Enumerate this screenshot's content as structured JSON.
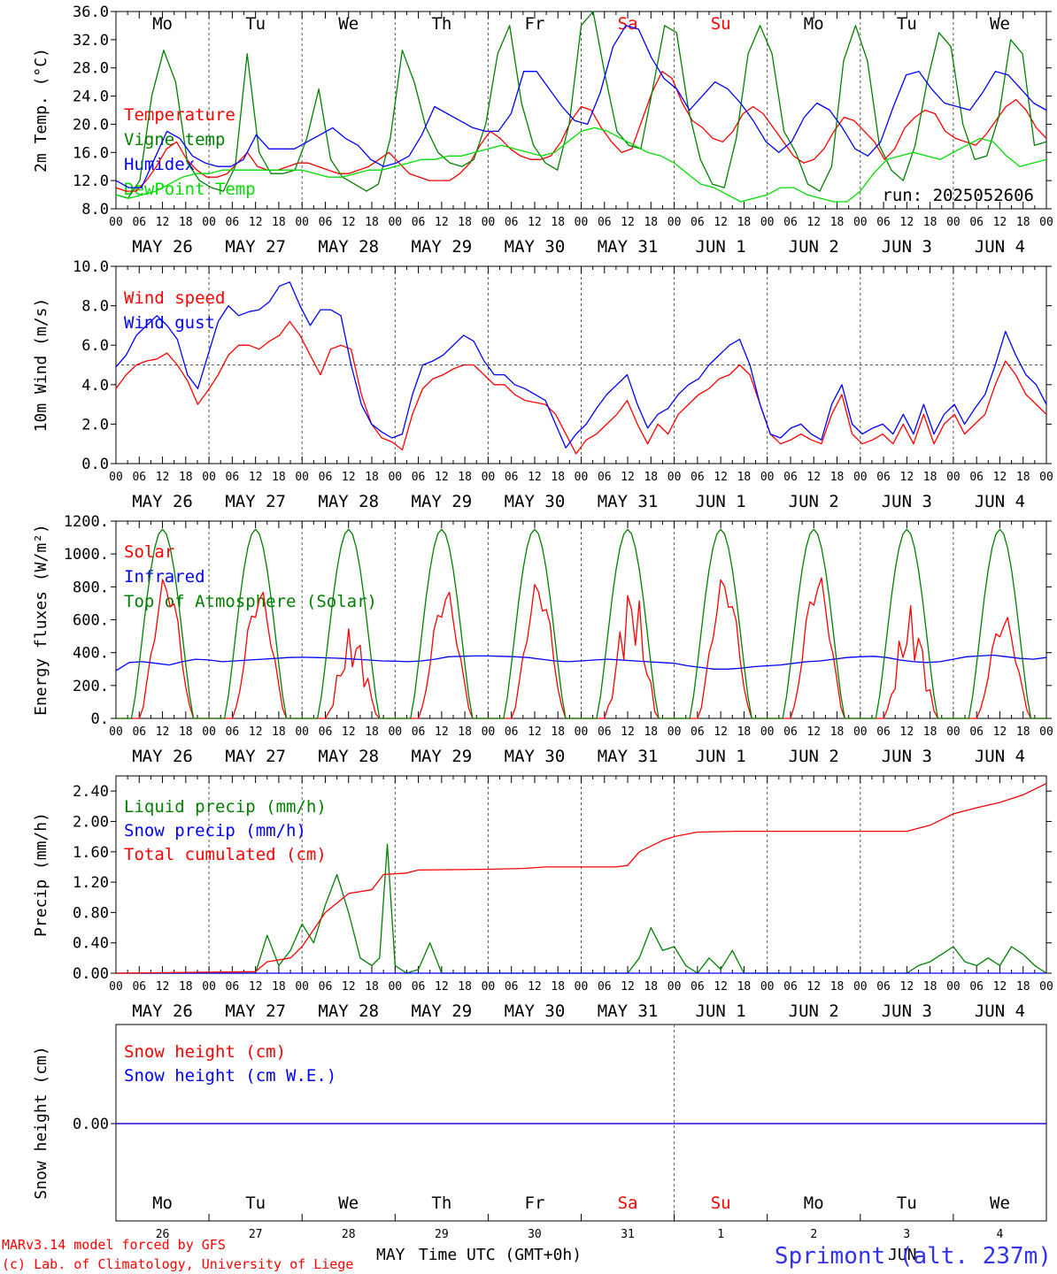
{
  "run_label": "run: 2025052606",
  "footer": {
    "model": "MARv3.14 model forced by GFS",
    "credit": "(c) Lab. of Climatology, University of Liege",
    "xlabel": "Time UTC (GMT+0h)",
    "month_may": "MAY",
    "month_jun": "JUN",
    "station": "Sprimont (alt. 237m)"
  },
  "days": [
    {
      "dow": "Mo",
      "date": "MAY 26",
      "num": "26",
      "weekend": false
    },
    {
      "dow": "Tu",
      "date": "MAY 27",
      "num": "27",
      "weekend": false
    },
    {
      "dow": "We",
      "date": "MAY 28",
      "num": "28",
      "weekend": false
    },
    {
      "dow": "Th",
      "date": "MAY 29",
      "num": "29",
      "weekend": false
    },
    {
      "dow": "Fr",
      "date": "MAY 30",
      "num": "30",
      "weekend": false
    },
    {
      "dow": "Sa",
      "date": "MAY 31",
      "num": "31",
      "weekend": true
    },
    {
      "dow": "Su",
      "date": "JUN  1",
      "num": "1",
      "weekend": true
    },
    {
      "dow": "Mo",
      "date": "JUN  2",
      "num": "2",
      "weekend": false
    },
    {
      "dow": "Tu",
      "date": "JUN  3",
      "num": "3",
      "weekend": false
    },
    {
      "dow": "We",
      "date": "JUN  4",
      "num": "4",
      "weekend": false
    }
  ],
  "hour_labels": [
    "00",
    "06",
    "12",
    "18"
  ],
  "last_hour_label": "00",
  "colors": {
    "red": "#ff0000",
    "green": "#008000",
    "blue": "#0000ff",
    "lightgreen": "#00dd00",
    "weekend": "#ff0000"
  },
  "chart_data": [
    {
      "type": "line",
      "ylabel": "2m Temp. (°C)",
      "ylim": [
        8,
        36
      ],
      "yticks": [
        "8.0",
        "12.0",
        "16.0",
        "20.0",
        "24.0",
        "28.0",
        "32.0",
        "36.0"
      ],
      "x_unit": "hours since MAY 26 00 UTC, 3-hourly, 0..240",
      "series": [
        {
          "name": "Temperature",
          "color": "red",
          "values": [
            11,
            10.5,
            10.5,
            12,
            14,
            16.5,
            17.5,
            15,
            13.5,
            12.5,
            12.5,
            13,
            14.5,
            16,
            14,
            13.5,
            13.5,
            14,
            14.5,
            14.5,
            14,
            13.5,
            13,
            13,
            13.5,
            14,
            15,
            16,
            14.5,
            13,
            12.5,
            12,
            12,
            12,
            13,
            14.5,
            17,
            19,
            18,
            16.5,
            15.5,
            15,
            15,
            15.5,
            17.5,
            20.5,
            22.5,
            22,
            19.5,
            17.5,
            16,
            16.5,
            20.5,
            24.5,
            27.5,
            26.5,
            23,
            20.5,
            19.5,
            18,
            17.5,
            19,
            21.5,
            22.5,
            21.5,
            19.5,
            17.5,
            15.5,
            14.5,
            15,
            16.5,
            19,
            21,
            20.5,
            19,
            17.5,
            15,
            16.5,
            19.5,
            21,
            22,
            21.5,
            19,
            18,
            17.5,
            17,
            18.5,
            20.5,
            22.5,
            23.5,
            22,
            19.5,
            18
          ]
        },
        {
          "name": "Vigne temp",
          "color": "green",
          "values": [
            10,
            9.5,
            12,
            24,
            30.5,
            26,
            14.5,
            12,
            11,
            10.5,
            14,
            30,
            16,
            13,
            13,
            13.5,
            18,
            25,
            15,
            12.5,
            11.5,
            10.5,
            11.5,
            18,
            30.5,
            26,
            19.5,
            16,
            14.5,
            14,
            15,
            20,
            30,
            34,
            23,
            17,
            14.5,
            13.5,
            20,
            34,
            36,
            27,
            19,
            17,
            16.5,
            25,
            34,
            33,
            22,
            15,
            11.5,
            11,
            18,
            30,
            34,
            30,
            19,
            16,
            11.5,
            10.5,
            14,
            29,
            34,
            29,
            17,
            13.5,
            12,
            17,
            26,
            33,
            31,
            20,
            15,
            15.5,
            21,
            32,
            30,
            17,
            17.5
          ]
        },
        {
          "name": "Humidex",
          "color": "blue",
          "values": [
            12,
            11,
            11,
            15,
            19,
            18,
            15.5,
            14.5,
            14,
            14,
            15,
            18.5,
            16.5,
            16.5,
            16.5,
            17.5,
            18.5,
            19.5,
            18,
            17,
            15,
            14,
            14.5,
            15.5,
            18.5,
            22.5,
            21.5,
            20.5,
            19.5,
            19,
            19,
            21.5,
            27.5,
            27.5,
            25,
            22.5,
            20.5,
            20,
            24.5,
            31,
            34,
            33.5,
            29.5,
            26.5,
            25,
            22,
            24,
            26,
            25,
            23,
            20.5,
            17.5,
            16,
            17.5,
            21,
            23,
            22,
            19.5,
            16.5,
            15.5,
            17.5,
            22.5,
            27,
            27.5,
            25,
            23,
            22.5,
            22,
            24.5,
            27.5,
            27,
            25,
            23,
            22
          ]
        },
        {
          "name": "DewPoint Temp",
          "color": "lightgreen",
          "values": [
            10,
            9.5,
            10,
            10.5,
            11.5,
            12.5,
            13,
            13,
            13.5,
            13.5,
            13.5,
            13.5,
            13.5,
            13.5,
            13.5,
            13,
            12.5,
            12.5,
            13,
            13.5,
            13.5,
            14,
            14.5,
            15,
            15,
            15.5,
            15.5,
            16,
            16.5,
            17,
            16.5,
            16,
            15.5,
            16,
            17.5,
            19,
            19.5,
            19,
            18,
            17,
            16,
            15.5,
            14.5,
            13,
            11.5,
            11,
            10,
            9,
            9.5,
            10,
            11,
            11,
            10,
            9.5,
            9,
            9,
            10.5,
            13,
            15,
            15.5,
            16,
            15.5,
            15,
            16,
            17,
            18,
            17.5,
            15.5,
            14,
            14.5,
            15
          ]
        }
      ]
    },
    {
      "type": "line",
      "ylabel": "10m Wind (m/s)",
      "ylim": [
        0,
        10
      ],
      "yticks": [
        "0.0",
        "2.0",
        "4.0",
        "6.0",
        "8.0",
        "10.0"
      ],
      "reference_line": 5,
      "series": [
        {
          "name": "Wind speed",
          "color": "red",
          "values": [
            3.8,
            4.5,
            5,
            5.2,
            5.3,
            5.6,
            5,
            4.2,
            3,
            3.7,
            4.5,
            5.5,
            6,
            6,
            5.8,
            6.2,
            6.5,
            7.2,
            6.5,
            5.5,
            4.5,
            5.8,
            6,
            5.8,
            3.5,
            2,
            1.3,
            1.1,
            0.7,
            2.5,
            3.8,
            4.3,
            4.5,
            4.8,
            5,
            5,
            4.5,
            4,
            4,
            3.5,
            3.2,
            3.1,
            3,
            2.5,
            1.5,
            0.5,
            1.2,
            1.5,
            2,
            2.5,
            3.2,
            2,
            1,
            2,
            1.5,
            2.5,
            3,
            3.5,
            3.8,
            4.3,
            4.5,
            5,
            4.5,
            3,
            1.5,
            1,
            1.2,
            1.5,
            1.2,
            1,
            2.5,
            3.5,
            1.5,
            1,
            1.2,
            1.5,
            1,
            2,
            1,
            2.5,
            1,
            2,
            2.5,
            1.5,
            2,
            2.5,
            4,
            5.2,
            4.5,
            3.5,
            3,
            2.5
          ]
        },
        {
          "name": "Wind gust",
          "color": "blue",
          "values": [
            4.9,
            5.5,
            6.5,
            7,
            7.5,
            7,
            6.3,
            4.5,
            3.8,
            5.5,
            7.2,
            8,
            7.5,
            7.7,
            7.8,
            8.2,
            9,
            9.2,
            8,
            7,
            7.8,
            7.8,
            7.5,
            5,
            3,
            2,
            1.6,
            1.3,
            1.5,
            3.5,
            5,
            5.2,
            5.5,
            6,
            6.5,
            6.2,
            5.2,
            4.5,
            4.5,
            4,
            3.8,
            3.5,
            3.2,
            2,
            0.8,
            1.5,
            2,
            2.8,
            3.5,
            4,
            4.5,
            3,
            1.8,
            2.5,
            2.8,
            3.5,
            4,
            4.3,
            5,
            5.5,
            6,
            6.3,
            5,
            3,
            1.5,
            1.3,
            1.8,
            2,
            1.5,
            1.2,
            3,
            4,
            2,
            1.5,
            1.8,
            2,
            1.5,
            2.5,
            1.5,
            3,
            1.5,
            2.5,
            3,
            2,
            2.8,
            3.5,
            5,
            6.7,
            5.5,
            4.5,
            4,
            3
          ]
        }
      ]
    },
    {
      "type": "line",
      "ylabel": "Energy fluxes (W/m²)",
      "ylim": [
        0,
        1200
      ],
      "yticks": [
        "0.",
        "200.",
        "400.",
        "600.",
        "800.",
        "1000.",
        "1200."
      ],
      "series": [
        {
          "name": "Solar",
          "color": "red",
          "peaks": [
            880,
            800,
            570,
            800,
            850,
            850,
            880,
            890,
            700,
            640
          ]
        },
        {
          "name": "Infrared",
          "color": "blue",
          "values": [
            290,
            340,
            345,
            335,
            325,
            345,
            360,
            355,
            345,
            350,
            355,
            360,
            365,
            370,
            372,
            370,
            368,
            365,
            360,
            355,
            350,
            348,
            345,
            350,
            360,
            375,
            378,
            380,
            380,
            378,
            375,
            370,
            360,
            350,
            345,
            350,
            355,
            360,
            355,
            350,
            345,
            340,
            335,
            320,
            310,
            300,
            300,
            305,
            315,
            320,
            325,
            335,
            345,
            350,
            360,
            370,
            375,
            378,
            370,
            355,
            345,
            340,
            345,
            360,
            375,
            380,
            385,
            375,
            365,
            360,
            370
          ]
        },
        {
          "name": "Top of Atmosphere (Solar)",
          "color": "green",
          "peak": 1150
        }
      ]
    },
    {
      "type": "line",
      "ylabel": "Precip (mm/h)",
      "ylim": [
        0,
        2.6
      ],
      "yticks": [
        "0.00",
        "0.40",
        "0.80",
        "1.20",
        "1.60",
        "2.00",
        "2.40"
      ],
      "series": [
        {
          "name": "Liquid precip (mm/h)",
          "color": "green",
          "points": [
            [
              0,
              0
            ],
            [
              36,
              0
            ],
            [
              39,
              0.5
            ],
            [
              42,
              0.1
            ],
            [
              45,
              0.3
            ],
            [
              48,
              0.65
            ],
            [
              51,
              0.4
            ],
            [
              54,
              0.9
            ],
            [
              57,
              1.3
            ],
            [
              60,
              0.8
            ],
            [
              63,
              0.2
            ],
            [
              66,
              0.1
            ],
            [
              68,
              0.2
            ],
            [
              70,
              1.7
            ],
            [
              72,
              0.1
            ],
            [
              75,
              0
            ],
            [
              78,
              0.05
            ],
            [
              81,
              0.4
            ],
            [
              84,
              0
            ],
            [
              132,
              0
            ],
            [
              135,
              0.2
            ],
            [
              138,
              0.6
            ],
            [
              141,
              0.3
            ],
            [
              144,
              0.35
            ],
            [
              147,
              0.1
            ],
            [
              150,
              0
            ],
            [
              153,
              0.2
            ],
            [
              156,
              0.05
            ],
            [
              159,
              0.3
            ],
            [
              162,
              0
            ],
            [
              204,
              0
            ],
            [
              207,
              0.1
            ],
            [
              210,
              0.15
            ],
            [
              213,
              0.25
            ],
            [
              216,
              0.35
            ],
            [
              219,
              0.15
            ],
            [
              222,
              0.1
            ],
            [
              225,
              0.2
            ],
            [
              228,
              0.1
            ],
            [
              231,
              0.35
            ],
            [
              234,
              0.25
            ],
            [
              237,
              0.1
            ],
            [
              240,
              0
            ]
          ]
        },
        {
          "name": "Snow precip (mm/h)",
          "color": "blue",
          "points": [
            [
              0,
              0
            ],
            [
              240,
              0
            ]
          ]
        },
        {
          "name": "Total cumulated (cm)",
          "color": "red",
          "points": [
            [
              0,
              0
            ],
            [
              36,
              0.02
            ],
            [
              39,
              0.15
            ],
            [
              45,
              0.2
            ],
            [
              48,
              0.35
            ],
            [
              54,
              0.8
            ],
            [
              60,
              1.05
            ],
            [
              66,
              1.1
            ],
            [
              69,
              1.3
            ],
            [
              75,
              1.32
            ],
            [
              78,
              1.36
            ],
            [
              96,
              1.37
            ],
            [
              105,
              1.38
            ],
            [
              111,
              1.4
            ],
            [
              129,
              1.4
            ],
            [
              132,
              1.42
            ],
            [
              135,
              1.6
            ],
            [
              141,
              1.75
            ],
            [
              144,
              1.8
            ],
            [
              150,
              1.86
            ],
            [
              160,
              1.87
            ],
            [
              204,
              1.87
            ],
            [
              210,
              1.95
            ],
            [
              216,
              2.1
            ],
            [
              222,
              2.18
            ],
            [
              228,
              2.25
            ],
            [
              234,
              2.35
            ],
            [
              240,
              2.5
            ]
          ]
        }
      ]
    },
    {
      "type": "line",
      "ylabel": "Snow height (cm)",
      "yticks": [
        "0.00"
      ],
      "series": [
        {
          "name": "Snow height (cm)",
          "color": "red",
          "values": [
            0,
            0
          ]
        },
        {
          "name": "Snow height (cm W.E.)",
          "color": "blue",
          "values": [
            0,
            0
          ]
        }
      ]
    }
  ]
}
